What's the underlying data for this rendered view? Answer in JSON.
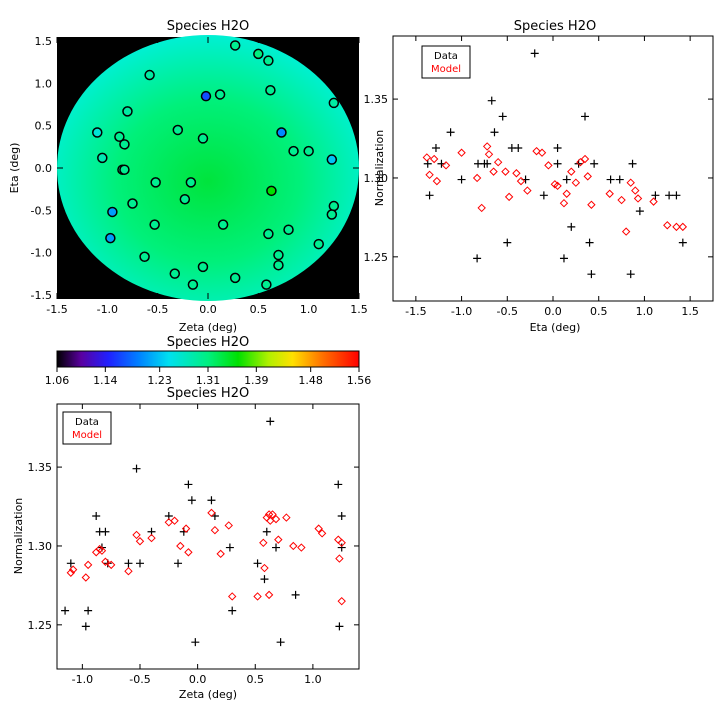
{
  "chart_data": [
    {
      "type": "heatmap",
      "title": "Species H2O",
      "xlabel": "Zeta (deg)",
      "ylabel": "Eta (deg)",
      "xlim": [
        -1.5,
        1.5
      ],
      "ylim": [
        -1.55,
        1.55
      ],
      "xticks": [
        "-1.5",
        "-1.0",
        "-0.5",
        "0.0",
        "0.5",
        "1.0",
        "1.5"
      ],
      "yticks": [
        "-1.5",
        "-1.0",
        "-0.5",
        "0.0",
        "0.5",
        "1.0",
        "1.5"
      ],
      "field": {
        "shape": "disk",
        "radius": 1.5,
        "center_value": 1.31,
        "edge_value": 1.27
      },
      "points": [
        [
          0.27,
          1.45
        ],
        [
          0.5,
          1.35
        ],
        [
          0.6,
          1.27
        ],
        [
          -0.58,
          1.1
        ],
        [
          -0.02,
          0.85
        ],
        [
          0.12,
          0.87
        ],
        [
          0.62,
          0.92
        ],
        [
          1.25,
          0.77
        ],
        [
          -0.8,
          0.67
        ],
        [
          -0.88,
          0.37
        ],
        [
          -1.1,
          0.42
        ],
        [
          -0.3,
          0.45
        ],
        [
          -0.05,
          0.35
        ],
        [
          0.73,
          0.42
        ],
        [
          -0.83,
          0.28
        ],
        [
          -1.05,
          0.12
        ],
        [
          0.85,
          0.2
        ],
        [
          1.0,
          0.2
        ],
        [
          1.23,
          0.1
        ],
        [
          -0.85,
          -0.02
        ],
        [
          -0.83,
          -0.02
        ],
        [
          -0.52,
          -0.17
        ],
        [
          -0.17,
          -0.17
        ],
        [
          0.63,
          -0.27
        ],
        [
          -0.23,
          -0.37
        ],
        [
          -0.75,
          -0.42
        ],
        [
          -0.95,
          -0.52
        ],
        [
          1.25,
          -0.45
        ],
        [
          1.23,
          -0.55
        ],
        [
          -0.53,
          -0.67
        ],
        [
          0.15,
          -0.67
        ],
        [
          0.8,
          -0.73
        ],
        [
          0.6,
          -0.78
        ],
        [
          -0.97,
          -0.83
        ],
        [
          1.1,
          -0.9
        ],
        [
          0.7,
          -1.03
        ],
        [
          -0.63,
          -1.05
        ],
        [
          0.7,
          -1.15
        ],
        [
          -0.05,
          -1.17
        ],
        [
          -0.33,
          -1.25
        ],
        [
          0.27,
          -1.3
        ],
        [
          -0.15,
          -1.38
        ],
        [
          0.58,
          -1.38
        ]
      ],
      "point_values": [
        1.3,
        1.31,
        1.3,
        1.29,
        1.17,
        1.3,
        1.3,
        1.29,
        1.29,
        1.3,
        1.26,
        1.3,
        1.3,
        1.2,
        1.3,
        1.28,
        1.3,
        1.3,
        1.23,
        1.3,
        1.3,
        1.3,
        1.3,
        1.36,
        1.3,
        1.3,
        1.21,
        1.3,
        1.3,
        1.3,
        1.3,
        1.3,
        1.3,
        1.21,
        1.3,
        1.3,
        1.3,
        1.3,
        1.3,
        1.3,
        1.3,
        1.3,
        1.3
      ]
    },
    {
      "type": "colorbar",
      "title": "Species H2O",
      "range": [
        1.06,
        1.56
      ],
      "ticks": [
        "1.06",
        "1.14",
        "1.23",
        "1.31",
        "1.39",
        "1.48",
        "1.56"
      ]
    },
    {
      "type": "scatter",
      "title": "Species H2O",
      "xlabel": "Eta (deg)",
      "ylabel": "Normalization",
      "xlim": [
        -1.75,
        1.75
      ],
      "ylim": [
        1.222,
        1.39
      ],
      "xticks": [
        "-1.5",
        "-1.0",
        "-0.5",
        "0.0",
        "0.5",
        "1.0",
        "1.5"
      ],
      "yticks": [
        "1.25",
        "1.30",
        "1.35"
      ],
      "legend": {
        "position": "top-left",
        "entries": [
          "Data",
          "Model"
        ]
      },
      "series": [
        {
          "name": "Data",
          "marker": "plus",
          "color": "#000000",
          "points": [
            [
              -1.37,
              1.309
            ],
            [
              -1.35,
              1.289
            ],
            [
              -1.28,
              1.319
            ],
            [
              -1.22,
              1.309
            ],
            [
              -1.12,
              1.329
            ],
            [
              -1.0,
              1.299
            ],
            [
              -0.83,
              1.249
            ],
            [
              -0.82,
              1.309
            ],
            [
              -0.75,
              1.309
            ],
            [
              -0.72,
              1.309
            ],
            [
              -0.67,
              1.349
            ],
            [
              -0.64,
              1.329
            ],
            [
              -0.55,
              1.339
            ],
            [
              -0.5,
              1.259
            ],
            [
              -0.45,
              1.319
            ],
            [
              -0.38,
              1.319
            ],
            [
              -0.3,
              1.299
            ],
            [
              -0.2,
              1.379
            ],
            [
              -0.1,
              1.289
            ],
            [
              0.05,
              1.319
            ],
            [
              0.05,
              1.309
            ],
            [
              0.12,
              1.249
            ],
            [
              0.15,
              1.299
            ],
            [
              0.2,
              1.269
            ],
            [
              0.28,
              1.309
            ],
            [
              0.35,
              1.339
            ],
            [
              0.4,
              1.259
            ],
            [
              0.42,
              1.239
            ],
            [
              0.45,
              1.309
            ],
            [
              0.63,
              1.299
            ],
            [
              0.73,
              1.299
            ],
            [
              0.85,
              1.239
            ],
            [
              0.87,
              1.309
            ],
            [
              0.95,
              1.279
            ],
            [
              1.12,
              1.289
            ],
            [
              1.27,
              1.289
            ],
            [
              1.35,
              1.289
            ],
            [
              1.42,
              1.259
            ]
          ]
        },
        {
          "name": "Model",
          "marker": "diamond",
          "color": "#ff0000",
          "points": [
            [
              -1.38,
              1.313
            ],
            [
              -1.35,
              1.302
            ],
            [
              -1.3,
              1.312
            ],
            [
              -1.27,
              1.298
            ],
            [
              -1.17,
              1.308
            ],
            [
              -1.0,
              1.316
            ],
            [
              -0.83,
              1.3
            ],
            [
              -0.78,
              1.281
            ],
            [
              -0.72,
              1.32
            ],
            [
              -0.7,
              1.315
            ],
            [
              -0.65,
              1.304
            ],
            [
              -0.6,
              1.31
            ],
            [
              -0.52,
              1.304
            ],
            [
              -0.48,
              1.288
            ],
            [
              -0.4,
              1.303
            ],
            [
              -0.35,
              1.298
            ],
            [
              -0.28,
              1.292
            ],
            [
              -0.18,
              1.317
            ],
            [
              -0.12,
              1.316
            ],
            [
              -0.05,
              1.308
            ],
            [
              0.02,
              1.296
            ],
            [
              0.05,
              1.295
            ],
            [
              0.12,
              1.284
            ],
            [
              0.15,
              1.29
            ],
            [
              0.2,
              1.304
            ],
            [
              0.25,
              1.297
            ],
            [
              0.3,
              1.31
            ],
            [
              0.35,
              1.312
            ],
            [
              0.38,
              1.301
            ],
            [
              0.42,
              1.283
            ],
            [
              0.62,
              1.29
            ],
            [
              0.75,
              1.286
            ],
            [
              0.8,
              1.266
            ],
            [
              0.85,
              1.297
            ],
            [
              0.9,
              1.292
            ],
            [
              0.93,
              1.287
            ],
            [
              1.1,
              1.285
            ],
            [
              1.25,
              1.27
            ],
            [
              1.35,
              1.269
            ],
            [
              1.42,
              1.269
            ]
          ]
        }
      ]
    },
    {
      "type": "scatter",
      "title": "Species H2O",
      "xlabel": "Zeta (deg)",
      "ylabel": "Normalization",
      "xlim": [
        -1.22,
        1.4
      ],
      "ylim": [
        1.222,
        1.39
      ],
      "xticks": [
        "-1.0",
        "-0.5",
        "0.0",
        "0.5",
        "1.0"
      ],
      "yticks": [
        "1.25",
        "1.30",
        "1.35"
      ],
      "legend": {
        "position": "top-left",
        "entries": [
          "Data",
          "Model"
        ]
      },
      "series": [
        {
          "name": "Data",
          "marker": "plus",
          "color": "#000000",
          "points": [
            [
              -1.15,
              1.259
            ],
            [
              -1.1,
              1.289
            ],
            [
              -0.97,
              1.249
            ],
            [
              -0.95,
              1.259
            ],
            [
              -0.88,
              1.319
            ],
            [
              -0.85,
              1.309
            ],
            [
              -0.83,
              1.299
            ],
            [
              -0.8,
              1.309
            ],
            [
              -0.78,
              1.289
            ],
            [
              -0.6,
              1.289
            ],
            [
              -0.53,
              1.349
            ],
            [
              -0.5,
              1.289
            ],
            [
              -0.4,
              1.309
            ],
            [
              -0.25,
              1.319
            ],
            [
              -0.17,
              1.289
            ],
            [
              -0.12,
              1.309
            ],
            [
              -0.08,
              1.339
            ],
            [
              -0.05,
              1.329
            ],
            [
              -0.02,
              1.239
            ],
            [
              0.12,
              1.329
            ],
            [
              0.15,
              1.319
            ],
            [
              0.28,
              1.299
            ],
            [
              0.3,
              1.259
            ],
            [
              0.52,
              1.289
            ],
            [
              0.58,
              1.279
            ],
            [
              0.6,
              1.309
            ],
            [
              0.63,
              1.379
            ],
            [
              0.68,
              1.299
            ],
            [
              0.72,
              1.239
            ],
            [
              0.85,
              1.269
            ],
            [
              1.22,
              1.339
            ],
            [
              1.23,
              1.249
            ],
            [
              1.25,
              1.299
            ],
            [
              1.25,
              1.319
            ]
          ]
        },
        {
          "name": "Model",
          "marker": "diamond",
          "color": "#ff0000",
          "points": [
            [
              -1.1,
              1.283
            ],
            [
              -1.08,
              1.285
            ],
            [
              -0.97,
              1.28
            ],
            [
              -0.95,
              1.288
            ],
            [
              -0.88,
              1.296
            ],
            [
              -0.85,
              1.298
            ],
            [
              -0.83,
              1.297
            ],
            [
              -0.8,
              1.29
            ],
            [
              -0.75,
              1.288
            ],
            [
              -0.6,
              1.284
            ],
            [
              -0.53,
              1.307
            ],
            [
              -0.5,
              1.303
            ],
            [
              -0.4,
              1.305
            ],
            [
              -0.25,
              1.315
            ],
            [
              -0.2,
              1.316
            ],
            [
              -0.15,
              1.3
            ],
            [
              -0.1,
              1.311
            ],
            [
              -0.08,
              1.296
            ],
            [
              0.12,
              1.321
            ],
            [
              0.15,
              1.31
            ],
            [
              0.2,
              1.295
            ],
            [
              0.27,
              1.313
            ],
            [
              0.3,
              1.268
            ],
            [
              0.52,
              1.268
            ],
            [
              0.57,
              1.302
            ],
            [
              0.58,
              1.286
            ],
            [
              0.6,
              1.318
            ],
            [
              0.62,
              1.32
            ],
            [
              0.63,
              1.316
            ],
            [
              0.65,
              1.32
            ],
            [
              0.68,
              1.317
            ],
            [
              0.7,
              1.304
            ],
            [
              0.77,
              1.318
            ],
            [
              0.83,
              1.3
            ],
            [
              0.9,
              1.299
            ],
            [
              1.05,
              1.311
            ],
            [
              1.08,
              1.308
            ],
            [
              1.22,
              1.304
            ],
            [
              1.23,
              1.292
            ],
            [
              1.25,
              1.265
            ],
            [
              1.25,
              1.302
            ],
            [
              0.62,
              1.269
            ]
          ]
        }
      ]
    }
  ]
}
